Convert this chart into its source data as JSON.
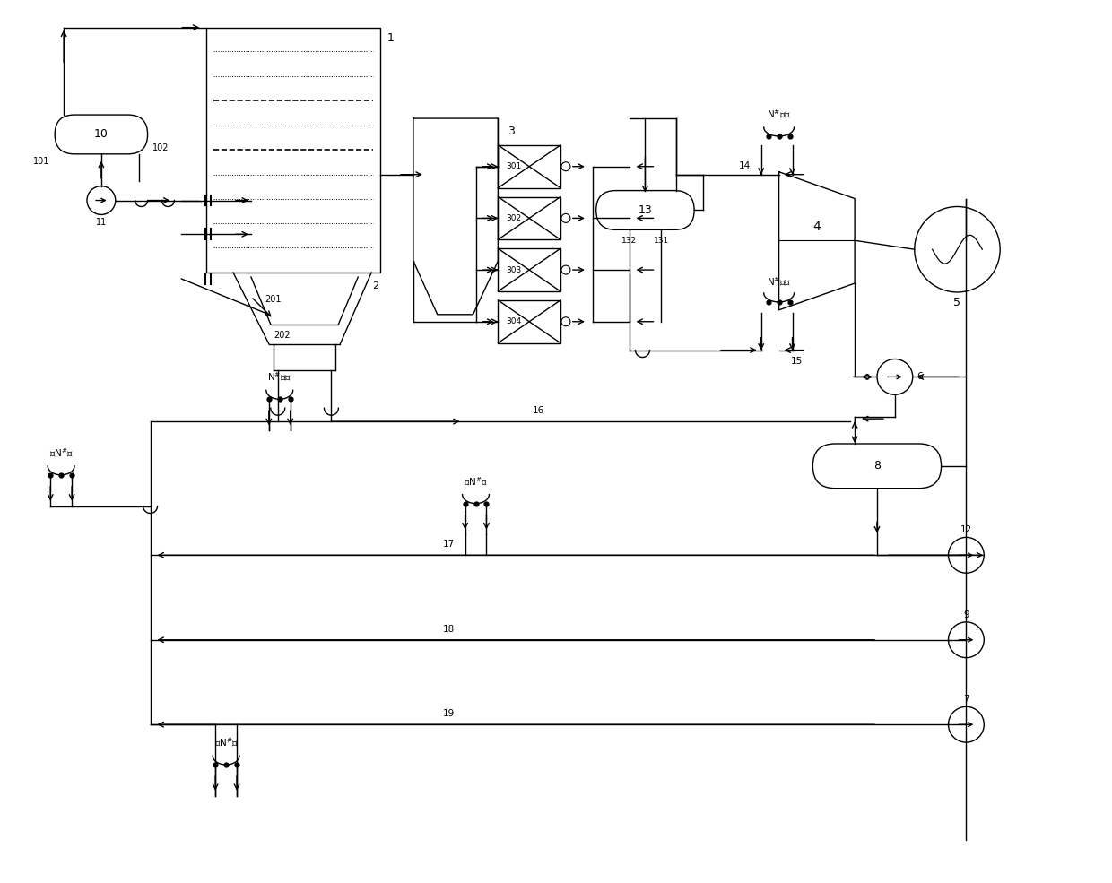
{
  "bg_color": "#ffffff",
  "line_color": "#000000",
  "fig_width": 12.4,
  "fig_height": 9.85,
  "dpi": 100,
  "lw": 1.0
}
